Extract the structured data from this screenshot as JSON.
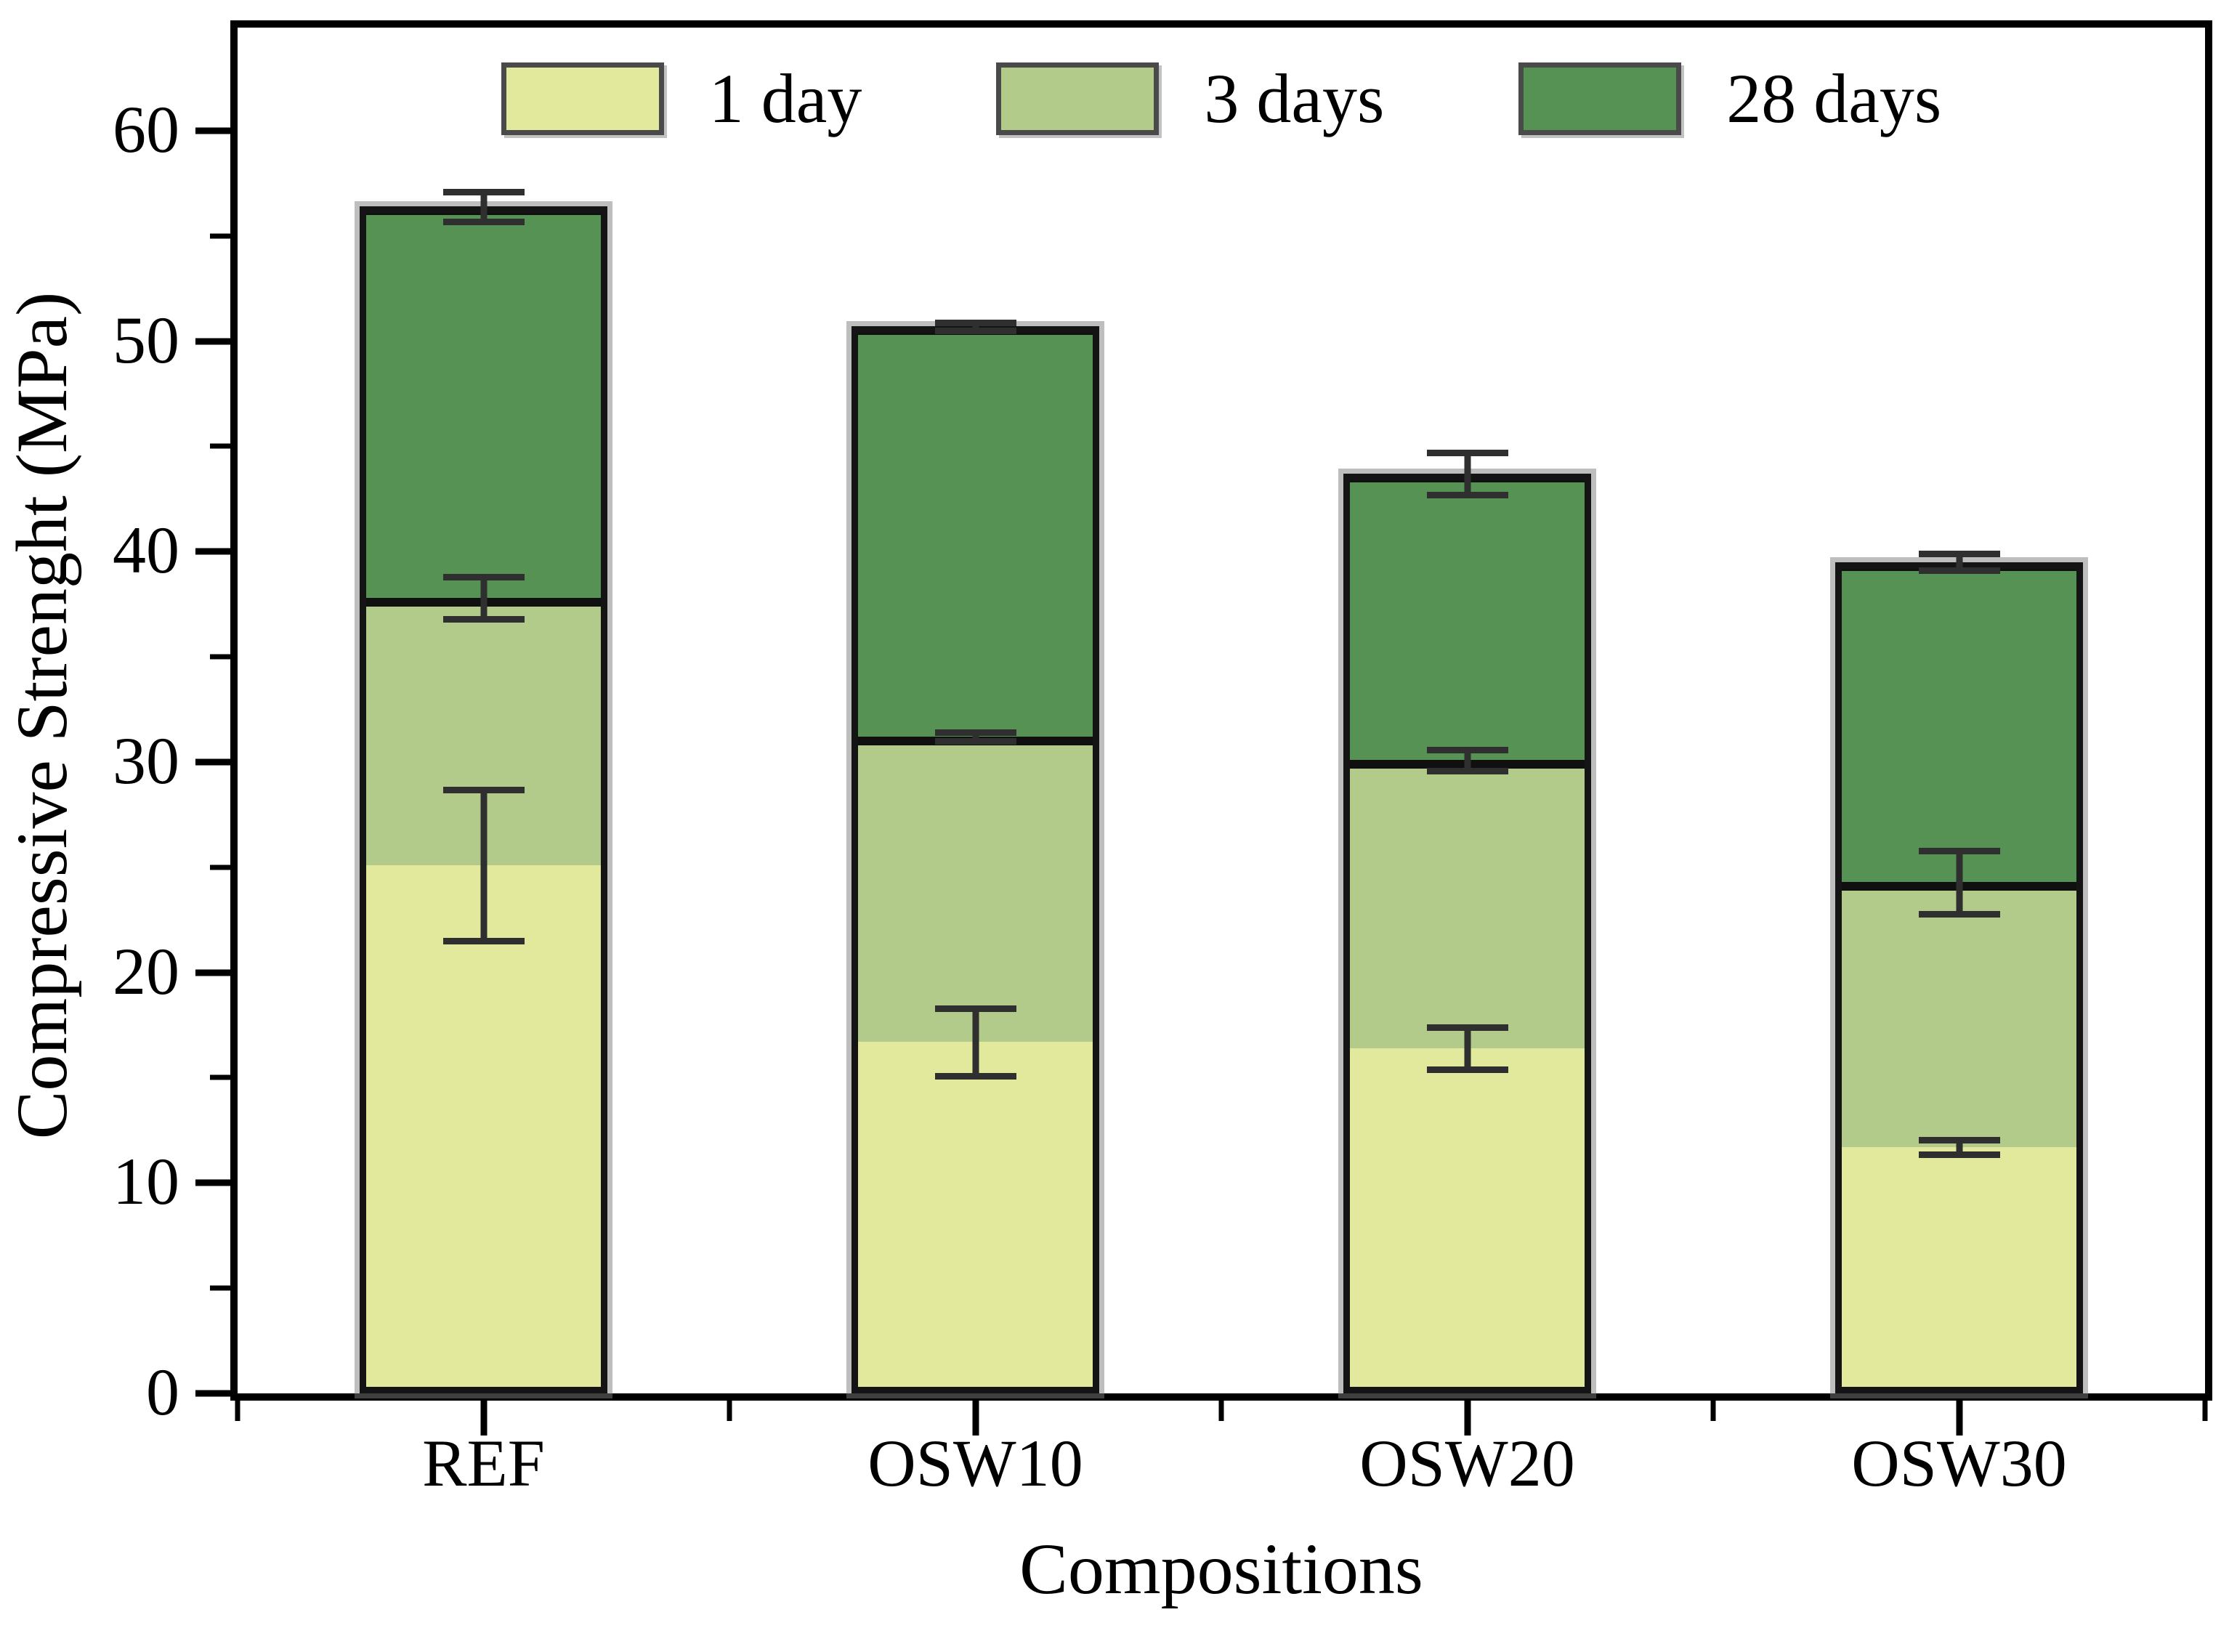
{
  "chart_data": {
    "type": "bar",
    "subtype": "stacked-vertical",
    "title": "",
    "xlabel": "Compositions",
    "ylabel": "Compressive Strenght (MPa)",
    "categories": [
      "REF",
      "OSW10",
      "OSW20",
      "OSW30"
    ],
    "ylim": [
      0,
      64.9
    ],
    "y_major_ticks": [
      0,
      10,
      20,
      30,
      40,
      50,
      60
    ],
    "y_minor_ticks": [
      5,
      15,
      25,
      35,
      45,
      55
    ],
    "grid": false,
    "legend_position": "top-center-inside",
    "bar_width_fraction": 0.126,
    "series": [
      {
        "name": "1 day",
        "color": "#e2e89c",
        "values": [
          25.1,
          16.7,
          16.4,
          11.7
        ],
        "cumulative": [
          25.1,
          16.7,
          16.4,
          11.7
        ],
        "errors": [
          3.6,
          1.6,
          1.0,
          0.35
        ]
      },
      {
        "name": "3 days",
        "color": "#b2cb8a",
        "values": [
          12.7,
          14.5,
          13.7,
          12.6
        ],
        "cumulative": [
          37.8,
          31.2,
          30.1,
          24.3
        ],
        "errors": [
          1.0,
          0.2,
          0.5,
          1.5
        ]
      },
      {
        "name": "28 days",
        "color": "#579255",
        "values": [
          18.6,
          19.5,
          13.6,
          15.2
        ],
        "cumulative": [
          56.4,
          50.7,
          43.7,
          39.5
        ],
        "errors": [
          0.7,
          0.2,
          1.0,
          0.4
        ]
      }
    ],
    "styles": {
      "axis_color": "#000000",
      "error_bar_color": "#2f2f2f",
      "bar_edge_color": "#141414",
      "bar_shadow_color": "rgba(125,125,125,0.5)",
      "segment_divider_color": "#101010"
    }
  }
}
